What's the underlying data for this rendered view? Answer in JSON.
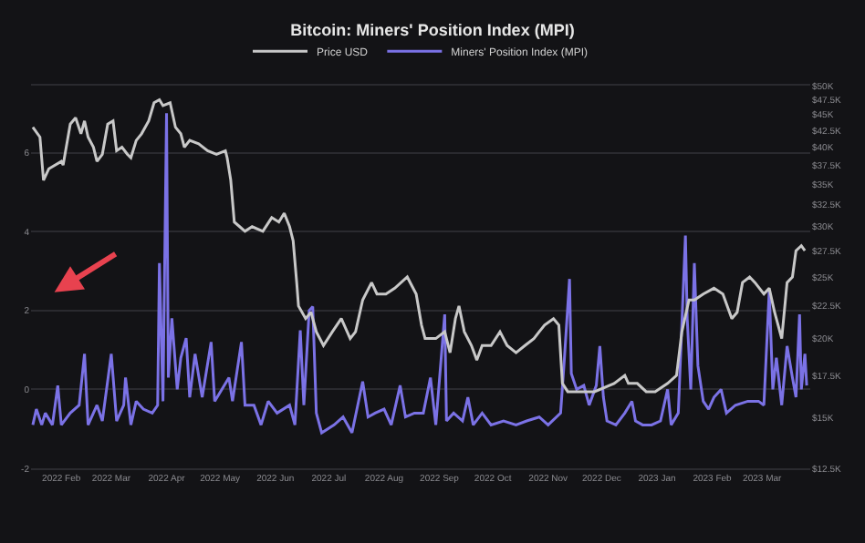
{
  "chart_data": {
    "type": "line",
    "title": "Bitcoin: Miners' Position Index (MPI)",
    "legend": "top",
    "grid": "y",
    "marker": "none",
    "line_style": "solid",
    "xlim": [
      "2022-01-15",
      "2023-03-28"
    ],
    "xticks": [
      {
        "value": "2022-02-01",
        "label": "2022 Feb"
      },
      {
        "value": "2022-03-01",
        "label": "2022 Mar"
      },
      {
        "value": "2022-04-01",
        "label": "2022 Apr"
      },
      {
        "value": "2022-05-01",
        "label": "2022 May"
      },
      {
        "value": "2022-06-01",
        "label": "2022 Jun"
      },
      {
        "value": "2022-07-01",
        "label": "2022 Jul"
      },
      {
        "value": "2022-08-01",
        "label": "2022 Aug"
      },
      {
        "value": "2022-09-01",
        "label": "2022 Sep"
      },
      {
        "value": "2022-10-01",
        "label": "2022 Oct"
      },
      {
        "value": "2022-11-01",
        "label": "2022 Nov"
      },
      {
        "value": "2022-12-01",
        "label": "2022 Dec"
      },
      {
        "value": "2023-01-01",
        "label": "2023 Jan"
      },
      {
        "value": "2023-02-01",
        "label": "2023 Feb"
      },
      {
        "value": "2023-03-01",
        "label": "2023 Mar"
      }
    ],
    "ylim": [
      -2,
      7.7
    ],
    "yticks": [
      -2,
      0,
      2,
      4,
      6
    ],
    "log": "y2",
    "y2lim": [
      12500,
      50000
    ],
    "y2ticks": [
      {
        "value": 12500,
        "label": "$12.5K"
      },
      {
        "value": 15000,
        "label": "$15K"
      },
      {
        "value": 17500,
        "label": "$17.5K"
      },
      {
        "value": 20000,
        "label": "$20K"
      },
      {
        "value": 22500,
        "label": "$22.5K"
      },
      {
        "value": 25000,
        "label": "$25K"
      },
      {
        "value": 27500,
        "label": "$27.5K"
      },
      {
        "value": 30000,
        "label": "$30K"
      },
      {
        "value": 32500,
        "label": "$32.5K"
      },
      {
        "value": 35000,
        "label": "$35K"
      },
      {
        "value": 37500,
        "label": "$37.5K"
      },
      {
        "value": 40000,
        "label": "$40K"
      },
      {
        "value": 42500,
        "label": "$42.5K"
      },
      {
        "value": 45000,
        "label": "$45K"
      },
      {
        "value": 47500,
        "label": "$47.5K"
      },
      {
        "value": 50000,
        "label": "$50K"
      }
    ],
    "series": [
      {
        "name": "Price USD",
        "color": "#c8c8c8",
        "axis": "y2",
        "x": [
          "2022-01-16",
          "2022-01-20",
          "2022-01-22",
          "2022-01-25",
          "2022-02-01",
          "2022-02-02",
          "2022-02-06",
          "2022-02-09",
          "2022-02-12",
          "2022-02-14",
          "2022-02-16",
          "2022-02-19",
          "2022-02-21",
          "2022-02-24",
          "2022-02-27",
          "2022-03-02",
          "2022-03-04",
          "2022-03-07",
          "2022-03-10",
          "2022-03-12",
          "2022-03-15",
          "2022-03-18",
          "2022-03-22",
          "2022-03-25",
          "2022-03-28",
          "2022-03-30",
          "2022-04-03",
          "2022-04-06",
          "2022-04-09",
          "2022-04-11",
          "2022-04-14",
          "2022-04-19",
          "2022-04-24",
          "2022-04-29",
          "2022-05-04",
          "2022-05-05",
          "2022-05-07",
          "2022-05-09",
          "2022-05-12",
          "2022-05-15",
          "2022-05-19",
          "2022-05-25",
          "2022-05-30",
          "2022-06-03",
          "2022-06-06",
          "2022-06-09",
          "2022-06-11",
          "2022-06-13",
          "2022-06-14",
          "2022-06-18",
          "2022-06-21",
          "2022-06-24",
          "2022-06-28",
          "2022-07-03",
          "2022-07-08",
          "2022-07-13",
          "2022-07-16",
          "2022-07-20",
          "2022-07-25",
          "2022-07-28",
          "2022-08-02",
          "2022-08-07",
          "2022-08-14",
          "2022-08-19",
          "2022-08-22",
          "2022-08-24",
          "2022-08-30",
          "2022-09-04",
          "2022-09-07",
          "2022-09-10",
          "2022-09-12",
          "2022-09-15",
          "2022-09-19",
          "2022-09-22",
          "2022-09-25",
          "2022-09-30",
          "2022-10-05",
          "2022-10-09",
          "2022-10-14",
          "2022-10-19",
          "2022-10-24",
          "2022-10-27",
          "2022-10-30",
          "2022-11-04",
          "2022-11-07",
          "2022-11-09",
          "2022-11-12",
          "2022-11-16",
          "2022-11-21",
          "2022-11-27",
          "2022-12-08",
          "2022-12-14",
          "2022-12-16",
          "2022-12-21",
          "2022-12-26",
          "2022-12-31",
          "2023-01-07",
          "2023-01-12",
          "2023-01-15",
          "2023-01-19",
          "2023-01-22",
          "2023-01-27",
          "2023-02-02",
          "2023-02-07",
          "2023-02-12",
          "2023-02-15",
          "2023-02-18",
          "2023-02-22",
          "2023-02-25",
          "2023-03-02",
          "2023-03-05",
          "2023-03-08",
          "2023-03-12",
          "2023-03-15",
          "2023-03-18",
          "2023-03-20",
          "2023-03-23",
          "2023-03-25"
        ],
        "values": [
          43000,
          41500,
          35500,
          37000,
          38000,
          37500,
          43500,
          44500,
          42000,
          44000,
          41500,
          40000,
          38000,
          39000,
          43500,
          44000,
          39500,
          40000,
          39000,
          38500,
          41000,
          42000,
          44000,
          47000,
          47500,
          46500,
          47000,
          43000,
          42000,
          40000,
          41000,
          40500,
          39500,
          39000,
          39500,
          38500,
          35500,
          30500,
          30000,
          29500,
          30000,
          29500,
          31000,
          30500,
          31500,
          30000,
          28500,
          24500,
          22500,
          21500,
          22000,
          20500,
          19500,
          20500,
          21500,
          20000,
          20500,
          23000,
          24500,
          23500,
          23500,
          24000,
          25000,
          23500,
          21000,
          20000,
          20000,
          20500,
          19000,
          21500,
          22500,
          20500,
          19500,
          18500,
          19500,
          19500,
          20500,
          19500,
          19000,
          19500,
          20000,
          20500,
          21000,
          21500,
          21000,
          17000,
          16500,
          16500,
          16500,
          16500,
          17000,
          17500,
          17000,
          17000,
          16500,
          16500,
          17000,
          17500,
          20500,
          23000,
          23000,
          23500,
          24000,
          23500,
          21500,
          22000,
          24500,
          25000,
          24500,
          23500,
          24000,
          22000,
          20000,
          24500,
          25000,
          27500,
          28000,
          27500
        ]
      },
      {
        "name": "Miners' Position Index (MPI)",
        "color": "#7b72e6",
        "axis": "y",
        "x": [
          "2022-01-16",
          "2022-01-18",
          "2022-01-21",
          "2022-01-23",
          "2022-01-27",
          "2022-01-30",
          "2022-02-01",
          "2022-02-06",
          "2022-02-11",
          "2022-02-14",
          "2022-02-16",
          "2022-02-21",
          "2022-02-24",
          "2022-03-01",
          "2022-03-04",
          "2022-03-08",
          "2022-03-09",
          "2022-03-12",
          "2022-03-15",
          "2022-03-19",
          "2022-03-24",
          "2022-03-27",
          "2022-03-28",
          "2022-03-30",
          "2022-04-01",
          "2022-04-02",
          "2022-04-04",
          "2022-04-07",
          "2022-04-09",
          "2022-04-12",
          "2022-04-14",
          "2022-04-17",
          "2022-04-21",
          "2022-04-26",
          "2022-04-28",
          "2022-05-02",
          "2022-05-06",
          "2022-05-08",
          "2022-05-13",
          "2022-05-15",
          "2022-05-20",
          "2022-05-24",
          "2022-05-28",
          "2022-06-02",
          "2022-06-09",
          "2022-06-12",
          "2022-06-15",
          "2022-06-17",
          "2022-06-20",
          "2022-06-22",
          "2022-06-24",
          "2022-06-27",
          "2022-07-04",
          "2022-07-09",
          "2022-07-14",
          "2022-07-20",
          "2022-07-23",
          "2022-07-27",
          "2022-08-01",
          "2022-08-05",
          "2022-08-10",
          "2022-08-13",
          "2022-08-18",
          "2022-08-23",
          "2022-08-27",
          "2022-08-30",
          "2022-09-04",
          "2022-09-05",
          "2022-09-09",
          "2022-09-14",
          "2022-09-17",
          "2022-09-20",
          "2022-09-25",
          "2022-09-30",
          "2022-10-07",
          "2022-10-14",
          "2022-10-20",
          "2022-10-27",
          "2022-11-01",
          "2022-11-08",
          "2022-11-10",
          "2022-11-13",
          "2022-11-14",
          "2022-11-17",
          "2022-11-21",
          "2022-11-24",
          "2022-11-28",
          "2022-11-30",
          "2022-12-02",
          "2022-12-04",
          "2022-12-09",
          "2022-12-14",
          "2022-12-18",
          "2022-12-20",
          "2022-12-24",
          "2022-12-29",
          "2023-01-03",
          "2023-01-07",
          "2023-01-09",
          "2023-01-13",
          "2023-01-17",
          "2023-01-18",
          "2023-01-20",
          "2023-01-22",
          "2023-01-24",
          "2023-01-27",
          "2023-01-30",
          "2023-02-02",
          "2023-02-06",
          "2023-02-09",
          "2023-02-14",
          "2023-02-21",
          "2023-02-27",
          "2023-03-02",
          "2023-03-05",
          "2023-03-07",
          "2023-03-09",
          "2023-03-12",
          "2023-03-15",
          "2023-03-18",
          "2023-03-20",
          "2023-03-22",
          "2023-03-23",
          "2023-03-25",
          "2023-03-26"
        ],
        "values": [
          -0.9,
          -0.5,
          -0.9,
          -0.6,
          -0.9,
          0.1,
          -0.9,
          -0.6,
          -0.4,
          0.9,
          -0.9,
          -0.4,
          -0.8,
          0.9,
          -0.8,
          -0.4,
          0.3,
          -0.9,
          -0.3,
          -0.5,
          -0.6,
          -0.4,
          3.2,
          -0.3,
          7.0,
          0.3,
          1.8,
          0.0,
          0.8,
          1.3,
          -0.2,
          0.9,
          -0.2,
          1.2,
          -0.3,
          0.0,
          0.3,
          -0.3,
          1.2,
          -0.4,
          -0.4,
          -0.9,
          -0.3,
          -0.6,
          -0.4,
          -0.9,
          1.5,
          -0.4,
          2.0,
          2.1,
          -0.6,
          -1.1,
          -0.9,
          -0.7,
          -1.1,
          0.2,
          -0.7,
          -0.6,
          -0.5,
          -0.9,
          0.1,
          -0.7,
          -0.6,
          -0.6,
          0.3,
          -0.9,
          1.9,
          -0.8,
          -0.6,
          -0.8,
          -0.2,
          -0.9,
          -0.6,
          -0.9,
          -0.8,
          -0.9,
          -0.8,
          -0.7,
          -0.9,
          -0.6,
          0.7,
          2.8,
          0.4,
          0.0,
          0.1,
          -0.4,
          0.1,
          1.1,
          -0.2,
          -0.8,
          -0.9,
          -0.6,
          -0.3,
          -0.8,
          -0.9,
          -0.9,
          -0.8,
          0.0,
          -0.9,
          -0.6,
          3.9,
          1.8,
          0.0,
          3.2,
          0.6,
          -0.3,
          -0.5,
          -0.2,
          0.0,
          -0.6,
          -0.4,
          -0.3,
          -0.3,
          -0.4,
          2.5,
          0.0,
          0.8,
          -0.4,
          1.1,
          0.3,
          -0.2,
          1.9,
          0.0,
          0.9,
          0.1
        ]
      }
    ]
  }
}
